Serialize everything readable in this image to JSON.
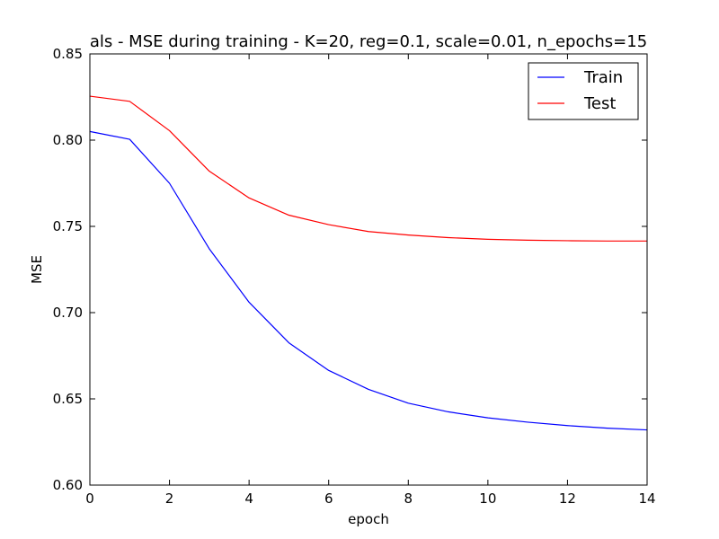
{
  "chart_data": {
    "type": "line",
    "title": "als - MSE during training - K=20, reg=0.1, scale=0.01, n_epochs=15",
    "xlabel": "epoch",
    "ylabel": "MSE",
    "xlim": [
      0,
      14
    ],
    "ylim": [
      0.6,
      0.85
    ],
    "xticks": [
      0,
      2,
      4,
      6,
      8,
      10,
      12,
      14
    ],
    "xtick_labels": [
      "0",
      "2",
      "4",
      "6",
      "8",
      "10",
      "12",
      "14"
    ],
    "yticks": [
      0.6,
      0.65,
      0.7,
      0.75,
      0.8,
      0.85
    ],
    "ytick_labels": [
      "0.60",
      "0.65",
      "0.70",
      "0.75",
      "0.80",
      "0.85"
    ],
    "grid": false,
    "legend_position": "top-right",
    "x": [
      0,
      1,
      2,
      3,
      4,
      5,
      6,
      7,
      8,
      9,
      10,
      11,
      12,
      13,
      14
    ],
    "series": [
      {
        "name": "Train",
        "color": "#0000ff",
        "values": [
          0.805,
          0.8005,
          0.775,
          0.737,
          0.706,
          0.6825,
          0.6665,
          0.6555,
          0.6475,
          0.6425,
          0.639,
          0.6365,
          0.6345,
          0.633,
          0.632
        ]
      },
      {
        "name": "Test",
        "color": "#ff0000",
        "values": [
          0.8255,
          0.8225,
          0.8055,
          0.782,
          0.7665,
          0.7565,
          0.751,
          0.747,
          0.745,
          0.7435,
          0.7425,
          0.742,
          0.7417,
          0.7415,
          0.7415
        ]
      }
    ]
  }
}
